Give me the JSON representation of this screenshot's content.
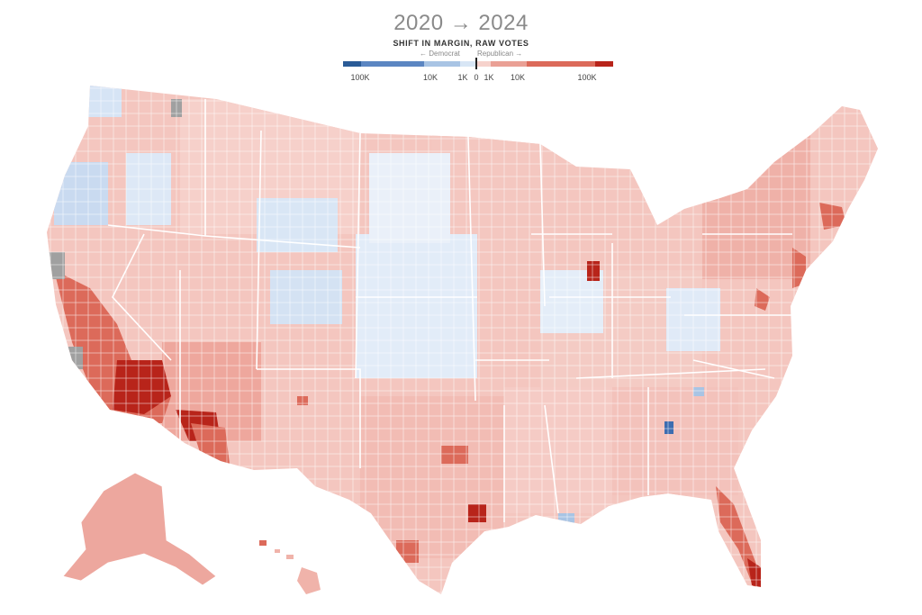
{
  "header": {
    "title": "2020 → 2024",
    "subtitle": "SHIFT IN MARGIN, RAW VOTES",
    "left_direction": "← Democrat",
    "right_direction": "Republican →"
  },
  "legend": {
    "ticks": [
      "100K",
      "10K",
      "1K",
      "0",
      "1K",
      "10K",
      "100K"
    ],
    "colors": [
      "#2a5b97",
      "#5b86c2",
      "#a8c4e4",
      "#d8e6f5",
      "#f6d2cc",
      "#eaa095",
      "#dc6a5a",
      "#b8241a"
    ]
  },
  "colors": {
    "strong_rep": "#b8241a",
    "mid_rep": "#dc6a5a",
    "light_rep": "#f0b3aa",
    "faint_rep": "#f8dcd7",
    "faint_dem": "#d8e6f5",
    "light_dem": "#a8c4e4",
    "no_data": "#a0a0a0",
    "background": "#ffffff",
    "borders": "#ffffff"
  }
}
